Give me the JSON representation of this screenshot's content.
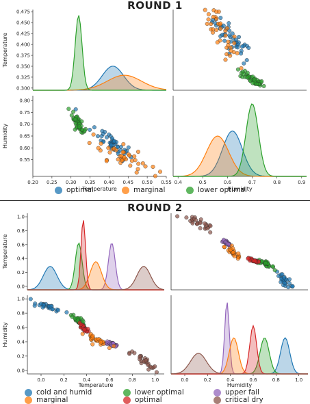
{
  "round1": {
    "title": "ROUND 1",
    "legend": [
      {
        "label": "optimal",
        "color": "#1f77b4"
      },
      {
        "label": "marginal",
        "color": "#ff7f0e"
      },
      {
        "label": "lower optimal",
        "color": "#2ca02c"
      }
    ]
  },
  "round2": {
    "title": "ROUND 2",
    "legend": [
      {
        "label": "cold and humid",
        "color": "#1f77b4"
      },
      {
        "label": "lower optimal",
        "color": "#2ca02c"
      },
      {
        "label": "upper fail",
        "color": "#9467bd"
      },
      {
        "label": "marginal",
        "color": "#ff7f0e"
      },
      {
        "label": "optimal",
        "color": "#d62728"
      },
      {
        "label": "critical dry",
        "color": "#8c564b"
      }
    ]
  },
  "chart_data": [
    {
      "type": "scatter",
      "title": "ROUND 1",
      "variables": [
        "Temperature",
        "Humidity"
      ],
      "layout": "pairplot-2x2",
      "axes": {
        "Temperature": {
          "range": [
            0.2,
            0.55
          ],
          "ticks": [
            "0.20",
            "0.25",
            "0.30",
            "0.35",
            "0.40",
            "0.45",
            "0.50",
            "0.55"
          ]
        },
        "Temperature_diag": {
          "range": [
            0.295,
            0.48
          ],
          "ticks": [
            "0.300",
            "0.325",
            "0.350",
            "0.375",
            "0.400",
            "0.425",
            "0.450",
            "0.475"
          ]
        },
        "Humidity": {
          "range": [
            0.38,
            0.92
          ],
          "ticks": [
            "0.4",
            "0.5",
            "0.6",
            "0.7",
            "0.8",
            "0.9"
          ]
        },
        "Humidity_y": {
          "range": [
            0.48,
            0.82
          ],
          "ticks": [
            "0.55",
            "0.60",
            "0.65",
            "0.70",
            "0.75",
            "0.80"
          ]
        }
      },
      "series": [
        {
          "name": "optimal",
          "color": "#1f77b4",
          "temperature": {
            "mean": 0.41,
            "sd": 0.028
          },
          "humidity": {
            "mean": 0.62,
            "sd": 0.04
          }
        },
        {
          "name": "marginal",
          "color": "#ff7f0e",
          "temperature": {
            "mean": 0.44,
            "sd": 0.045
          },
          "humidity": {
            "mean": 0.56,
            "sd": 0.045
          }
        },
        {
          "name": "lower optimal",
          "color": "#2ca02c",
          "temperature": {
            "mean": 0.32,
            "sd": 0.009
          },
          "humidity": {
            "mean": 0.7,
            "sd": 0.025
          }
        }
      ],
      "xlabel": "Temperature / Humidity",
      "ylabel": "Temperature / Humidity",
      "grid": false,
      "legend": "bottom"
    },
    {
      "type": "scatter",
      "title": "ROUND 2",
      "variables": [
        "Temperature",
        "Humidity"
      ],
      "layout": "pairplot-2x2",
      "axes": {
        "Temperature": {
          "range": [
            -0.12,
            1.08
          ],
          "ticks": [
            "0.0",
            "0.2",
            "0.4",
            "0.6",
            "0.8",
            "1.0"
          ]
        },
        "Humidity": {
          "range": [
            -0.12,
            1.08
          ],
          "ticks": [
            "0.0",
            "0.2",
            "0.4",
            "0.6",
            "0.8",
            "1.0"
          ]
        }
      },
      "series": [
        {
          "name": "cold and humid",
          "color": "#1f77b4",
          "temperature": {
            "mean": 0.08,
            "sd": 0.06
          },
          "humidity": {
            "mean": 0.88,
            "sd": 0.04
          }
        },
        {
          "name": "lower optimal",
          "color": "#2ca02c",
          "temperature": {
            "mean": 0.33,
            "sd": 0.03
          },
          "humidity": {
            "mean": 0.7,
            "sd": 0.04
          }
        },
        {
          "name": "upper fail",
          "color": "#9467bd",
          "temperature": {
            "mean": 0.62,
            "sd": 0.03
          },
          "humidity": {
            "mean": 0.37,
            "sd": 0.02
          }
        },
        {
          "name": "marginal",
          "color": "#ff7f0e",
          "temperature": {
            "mean": 0.48,
            "sd": 0.05
          },
          "humidity": {
            "mean": 0.43,
            "sd": 0.04
          }
        },
        {
          "name": "optimal",
          "color": "#d62728",
          "temperature": {
            "mean": 0.37,
            "sd": 0.02
          },
          "humidity": {
            "mean": 0.6,
            "sd": 0.03
          }
        },
        {
          "name": "critical dry",
          "color": "#8c564b",
          "temperature": {
            "mean": 0.9,
            "sd": 0.06
          },
          "humidity": {
            "mean": 0.12,
            "sd": 0.07
          }
        }
      ],
      "xlabel": "Temperature / Humidity",
      "ylabel": "Temperature / Humidity",
      "grid": false,
      "legend": "bottom"
    }
  ],
  "labels": {
    "temperature": "Temperature",
    "humidity": "Humidity"
  }
}
